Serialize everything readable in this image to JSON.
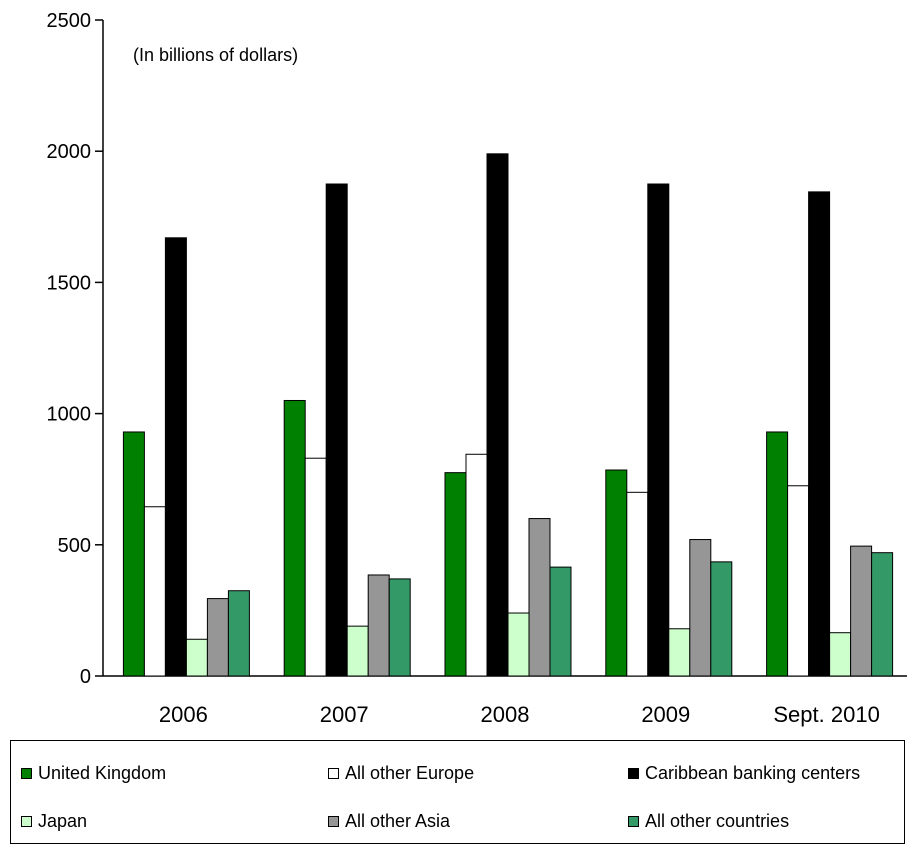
{
  "chart_data": {
    "type": "bar",
    "title": "",
    "xlabel": "",
    "ylabel": "",
    "note": "(In billions of dollars)",
    "ylim": [
      0,
      2500
    ],
    "yticks": [
      0,
      500,
      1000,
      1500,
      2000,
      2500
    ],
    "categories": [
      "2006",
      "2007",
      "2008",
      "2009",
      "Sept. 2010"
    ],
    "legend_position": "bottom",
    "grid": false,
    "series": [
      {
        "name": "United Kingdom",
        "color": "#008000",
        "values": [
          930,
          1050,
          775,
          785,
          930
        ]
      },
      {
        "name": "All other Europe",
        "color": "#ffffff",
        "values": [
          645,
          830,
          845,
          700,
          725
        ]
      },
      {
        "name": "Caribbean banking centers",
        "color": "#000000",
        "values": [
          1670,
          1875,
          1990,
          1875,
          1845
        ]
      },
      {
        "name": "Japan",
        "color": "#ccffcc",
        "values": [
          140,
          190,
          240,
          180,
          165
        ]
      },
      {
        "name": "All other Asia",
        "color": "#969696",
        "values": [
          295,
          385,
          600,
          520,
          495
        ]
      },
      {
        "name": "All other countries",
        "color": "#339966",
        "values": [
          325,
          370,
          415,
          435,
          470
        ]
      }
    ]
  }
}
